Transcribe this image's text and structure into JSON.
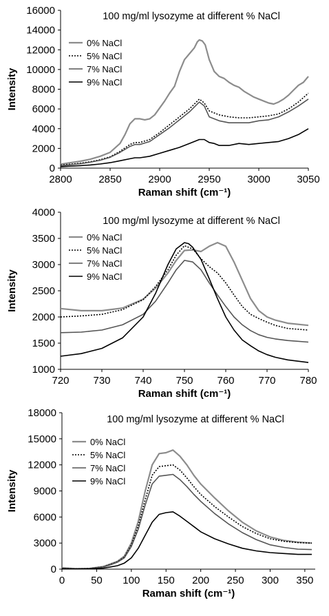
{
  "chart_data": [
    {
      "type": "line",
      "title": "100 mg/ml lysozyme at different % NaCl",
      "xlabel": "Raman shift (cm⁻¹)",
      "ylabel": "Intensity",
      "xlim": [
        2800,
        3050
      ],
      "ylim": [
        0,
        16000
      ],
      "xticks": [
        "2800",
        "2850",
        "2900",
        "2950",
        "3000",
        "3050"
      ],
      "yticks": [
        "0",
        "2000",
        "4000",
        "6000",
        "8000",
        "10000",
        "12000",
        "14000",
        "16000"
      ],
      "grid": false,
      "legend_position": "top-left",
      "series": [
        {
          "name": "0% NaCl",
          "color": "#8c8c8c",
          "dash": "solid",
          "x": [
            2800,
            2810,
            2820,
            2830,
            2840,
            2850,
            2860,
            2865,
            2870,
            2875,
            2880,
            2885,
            2890,
            2895,
            2900,
            2905,
            2910,
            2915,
            2920,
            2925,
            2930,
            2935,
            2938,
            2940,
            2943,
            2946,
            2950,
            2955,
            2960,
            2965,
            2970,
            2975,
            2980,
            2985,
            2990,
            2995,
            3000,
            3005,
            3010,
            3015,
            3020,
            3025,
            3030,
            3035,
            3040,
            3045,
            3050
          ],
          "y": [
            400,
            550,
            700,
            900,
            1200,
            1600,
            2500,
            3400,
            4500,
            5000,
            5000,
            4900,
            5000,
            5400,
            6100,
            6800,
            7600,
            8300,
            9800,
            11000,
            11600,
            12200,
            12800,
            13000,
            12900,
            12500,
            11000,
            9800,
            9300,
            9100,
            8700,
            8400,
            8200,
            7800,
            7500,
            7200,
            7000,
            6800,
            6600,
            6500,
            6700,
            7000,
            7400,
            7900,
            8400,
            8700,
            9300
          ]
        },
        {
          "name": "5% NaCl",
          "color": "#000000",
          "dash": "dotted",
          "x": [
            2800,
            2810,
            2820,
            2830,
            2840,
            2850,
            2860,
            2870,
            2875,
            2880,
            2890,
            2900,
            2910,
            2920,
            2930,
            2935,
            2940,
            2945,
            2950,
            2960,
            2970,
            2980,
            2990,
            3000,
            3010,
            3020,
            3030,
            3040,
            3050
          ],
          "y": [
            300,
            400,
            500,
            650,
            850,
            1150,
            1700,
            2400,
            2600,
            2600,
            2900,
            3600,
            4400,
            5200,
            6000,
            6500,
            7000,
            6600,
            5800,
            5400,
            5200,
            5100,
            5100,
            5200,
            5300,
            5500,
            6000,
            6700,
            7600
          ]
        },
        {
          "name": "7% NaCl",
          "color": "#555555",
          "dash": "solid",
          "x": [
            2800,
            2810,
            2820,
            2830,
            2840,
            2850,
            2860,
            2870,
            2875,
            2880,
            2890,
            2900,
            2910,
            2920,
            2930,
            2935,
            2940,
            2945,
            2950,
            2960,
            2970,
            2980,
            2990,
            3000,
            3010,
            3020,
            3030,
            3040,
            3050
          ],
          "y": [
            250,
            350,
            450,
            600,
            800,
            1100,
            1600,
            2200,
            2400,
            2400,
            2700,
            3400,
            4100,
            4900,
            5700,
            6200,
            6700,
            6300,
            5200,
            4800,
            4600,
            4600,
            4600,
            4800,
            4900,
            5200,
            5700,
            6300,
            7000
          ]
        },
        {
          "name": "9% NaCl",
          "color": "#000000",
          "dash": "solid",
          "x": [
            2800,
            2810,
            2820,
            2830,
            2840,
            2850,
            2860,
            2870,
            2875,
            2880,
            2890,
            2900,
            2910,
            2920,
            2930,
            2935,
            2940,
            2945,
            2950,
            2955,
            2960,
            2970,
            2980,
            2990,
            3000,
            3010,
            3020,
            3030,
            3040,
            3050
          ],
          "y": [
            150,
            200,
            250,
            320,
            420,
            550,
            750,
            950,
            1050,
            1050,
            1200,
            1500,
            1800,
            2100,
            2500,
            2700,
            2900,
            2900,
            2600,
            2500,
            2300,
            2300,
            2500,
            2400,
            2500,
            2600,
            2700,
            3000,
            3400,
            4000
          ]
        }
      ]
    },
    {
      "type": "line",
      "title": "100 mg/ml lysozyme at different % NaCl",
      "xlabel": "Raman shift (cm⁻¹)",
      "ylabel": "Intensity",
      "xlim": [
        720,
        780
      ],
      "ylim": [
        1000,
        4000
      ],
      "xticks": [
        "720",
        "730",
        "740",
        "750",
        "760",
        "770",
        "780"
      ],
      "yticks": [
        "1000",
        "1500",
        "2000",
        "2500",
        "3000",
        "3500",
        "4000"
      ],
      "grid": false,
      "legend_position": "top-left",
      "series": [
        {
          "name": "0% NaCl",
          "color": "#8c8c8c",
          "dash": "solid",
          "x": [
            720,
            725,
            730,
            735,
            740,
            743,
            746,
            748,
            750,
            752,
            754,
            756,
            758,
            760,
            762,
            764,
            766,
            768,
            770,
            772,
            775,
            780
          ],
          "y": [
            2160,
            2120,
            2120,
            2170,
            2340,
            2550,
            2840,
            3080,
            3270,
            3280,
            3250,
            3350,
            3420,
            3350,
            3050,
            2700,
            2350,
            2120,
            2000,
            1940,
            1880,
            1840
          ]
        },
        {
          "name": "5% NaCl",
          "color": "#000000",
          "dash": "dotted",
          "x": [
            720,
            725,
            730,
            735,
            740,
            743,
            746,
            748,
            750,
            752,
            754,
            756,
            758,
            760,
            762,
            764,
            766,
            768,
            770,
            772,
            775,
            780
          ],
          "y": [
            2000,
            2020,
            2050,
            2140,
            2330,
            2580,
            2900,
            3180,
            3360,
            3300,
            3110,
            2960,
            2840,
            2650,
            2420,
            2200,
            2050,
            1970,
            1900,
            1840,
            1780,
            1750
          ]
        },
        {
          "name": "7% NaCl",
          "color": "#555555",
          "dash": "solid",
          "x": [
            720,
            725,
            730,
            735,
            740,
            743,
            746,
            748,
            750,
            752,
            754,
            756,
            758,
            760,
            762,
            764,
            766,
            768,
            770,
            772,
            775,
            780
          ],
          "y": [
            1700,
            1710,
            1750,
            1850,
            2050,
            2300,
            2650,
            2900,
            3080,
            3050,
            2900,
            2650,
            2420,
            2200,
            2000,
            1850,
            1740,
            1660,
            1610,
            1580,
            1550,
            1520
          ]
        },
        {
          "name": "9% NaCl",
          "color": "#000000",
          "dash": "solid",
          "x": [
            720,
            725,
            730,
            735,
            740,
            743,
            746,
            748,
            750,
            751,
            752,
            754,
            756,
            758,
            760,
            762,
            764,
            766,
            768,
            770,
            772,
            775,
            780
          ],
          "y": [
            1250,
            1300,
            1400,
            1600,
            2000,
            2450,
            3000,
            3300,
            3420,
            3400,
            3330,
            3100,
            2730,
            2350,
            2000,
            1750,
            1560,
            1450,
            1350,
            1280,
            1230,
            1180,
            1130
          ]
        }
      ]
    },
    {
      "type": "line",
      "title": "100 mg/ml lysozyme at different % NaCl",
      "xlabel": "Raman shift (cm⁻¹)",
      "ylabel": "Intensity",
      "xlim": [
        0,
        365
      ],
      "ylim": [
        0,
        18000
      ],
      "xticks": [
        "0",
        "50",
        "100",
        "150",
        "200",
        "250",
        "300",
        "350"
      ],
      "yticks": [
        "0",
        "3000",
        "6000",
        "9000",
        "12000",
        "15000",
        "18000"
      ],
      "grid": false,
      "legend_position": "top-left",
      "series": [
        {
          "name": "0% NaCl",
          "color": "#8c8c8c",
          "dash": "solid",
          "x": [
            0,
            20,
            40,
            60,
            70,
            80,
            90,
            100,
            110,
            120,
            130,
            140,
            150,
            160,
            170,
            180,
            190,
            200,
            220,
            240,
            260,
            280,
            300,
            320,
            340,
            360
          ],
          "y": [
            150,
            50,
            80,
            300,
            600,
            900,
            1500,
            3000,
            5500,
            9000,
            12000,
            13300,
            13400,
            13700,
            13000,
            12000,
            10800,
            9800,
            8200,
            6700,
            5400,
            4400,
            3700,
            3300,
            3100,
            3000
          ]
        },
        {
          "name": "5% NaCl",
          "color": "#000000",
          "dash": "dotted",
          "x": [
            0,
            20,
            40,
            60,
            70,
            80,
            90,
            100,
            110,
            120,
            130,
            140,
            150,
            160,
            170,
            180,
            190,
            200,
            220,
            240,
            260,
            280,
            300,
            320,
            340,
            360
          ],
          "y": [
            100,
            50,
            80,
            280,
            550,
            850,
            1400,
            2800,
            5000,
            8000,
            10800,
            11800,
            11900,
            12000,
            11400,
            10500,
            9500,
            8600,
            7200,
            6000,
            4900,
            4100,
            3500,
            3200,
            3050,
            3000
          ]
        },
        {
          "name": "7% NaCl",
          "color": "#555555",
          "dash": "solid",
          "x": [
            0,
            20,
            40,
            60,
            70,
            80,
            90,
            100,
            110,
            120,
            130,
            140,
            150,
            160,
            170,
            180,
            190,
            200,
            220,
            240,
            260,
            280,
            300,
            320,
            340,
            360
          ],
          "y": [
            100,
            40,
            70,
            250,
            500,
            800,
            1300,
            2600,
            4600,
            7400,
            9800,
            10700,
            10800,
            10900,
            10300,
            9500,
            8600,
            7800,
            6400,
            5200,
            4200,
            3400,
            2800,
            2500,
            2300,
            2250
          ]
        },
        {
          "name": "9% NaCl",
          "color": "#000000",
          "dash": "solid",
          "x": [
            0,
            20,
            40,
            60,
            70,
            80,
            90,
            100,
            110,
            120,
            130,
            140,
            150,
            160,
            170,
            180,
            190,
            200,
            220,
            240,
            260,
            280,
            300,
            320,
            340,
            360
          ],
          "y": [
            50,
            20,
            40,
            120,
            250,
            400,
            700,
            1300,
            2400,
            3900,
            5400,
            6300,
            6500,
            6600,
            6100,
            5500,
            4900,
            4300,
            3500,
            2900,
            2400,
            2100,
            1900,
            1800,
            1700,
            1700
          ]
        }
      ]
    }
  ]
}
